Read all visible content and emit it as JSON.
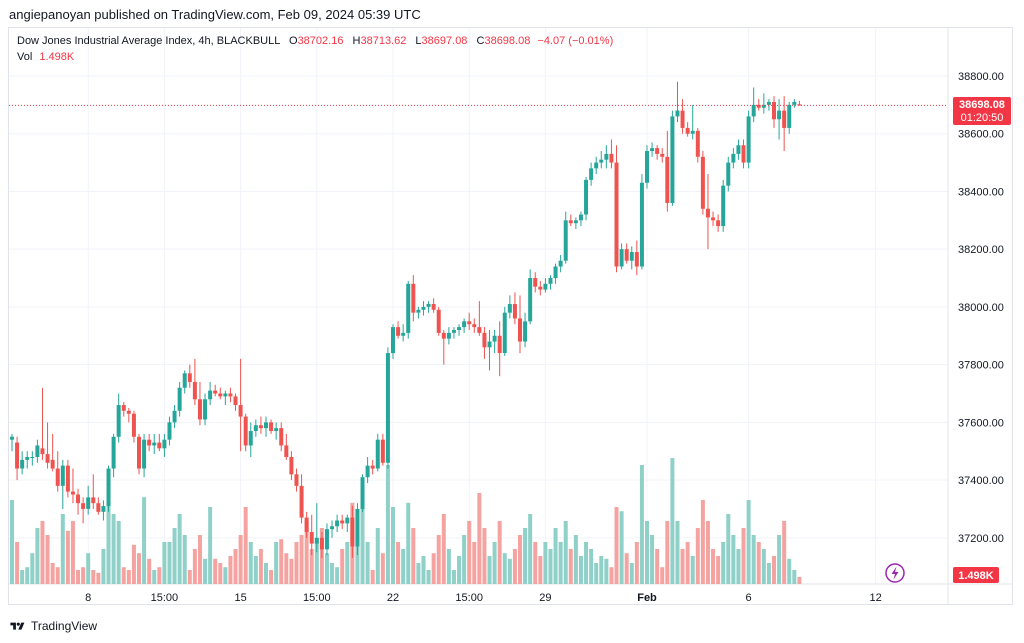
{
  "header": {
    "publisher_line": "angiepanoyan published on TradingView.com, Feb 09, 2024 05:39 UTC"
  },
  "legend": {
    "symbol": "Dow Jones Industrial Average Index, 4h, BLACKBULL",
    "o_label": "O",
    "o_value": "38702.16",
    "h_label": "H",
    "h_value": "38713.62",
    "l_label": "L",
    "l_value": "38697.08",
    "c_label": "C",
    "c_value": "38698.08",
    "change": "−4.07 (−0.01%)",
    "vol_label": "Vol",
    "vol_value": "1.498K"
  },
  "price_badge": {
    "price": "38698.08",
    "countdown": "01:20:50"
  },
  "volume_badge": "1.498K",
  "footer": {
    "brand": "TradingView"
  },
  "colors": {
    "up": "#26a69a",
    "down": "#ef5350",
    "vol_up": "#8fd0c8",
    "vol_down": "#f5a3a1",
    "badge": "#f23645"
  },
  "chart_data": {
    "type": "candlestick",
    "y_axis": {
      "ticks": [
        37200,
        37400,
        37600,
        37800,
        38000,
        38200,
        38400,
        38600,
        38800
      ],
      "range": [
        37040,
        38890
      ]
    },
    "x_tick_labels": [
      {
        "label": "8",
        "bar": 15
      },
      {
        "label": "15:00",
        "bar": 30
      },
      {
        "label": "15",
        "bar": 45
      },
      {
        "label": "15:00",
        "bar": 60
      },
      {
        "label": "22",
        "bar": 75
      },
      {
        "label": "15:00",
        "bar": 90
      },
      {
        "label": "29",
        "bar": 105
      },
      {
        "label": "Feb",
        "bar": 125
      },
      {
        "label": "6",
        "bar": 145
      },
      {
        "label": "12",
        "bar": 170
      }
    ],
    "last_price": 38698.08,
    "volume_max": 100,
    "candles": [
      {
        "o": 37540,
        "h": 37560,
        "l": 37500,
        "c": 37550,
        "v": 60
      },
      {
        "o": 37530,
        "h": 37550,
        "l": 37400,
        "c": 37440,
        "v": 30
      },
      {
        "o": 37440,
        "h": 37500,
        "l": 37420,
        "c": 37470,
        "v": 10
      },
      {
        "o": 37470,
        "h": 37500,
        "l": 37440,
        "c": 37480,
        "v": 12
      },
      {
        "o": 37480,
        "h": 37500,
        "l": 37450,
        "c": 37480,
        "v": 22
      },
      {
        "o": 37480,
        "h": 37540,
        "l": 37460,
        "c": 37520,
        "v": 40
      },
      {
        "o": 37510,
        "h": 37720,
        "l": 37470,
        "c": 37490,
        "v": 45
      },
      {
        "o": 37490,
        "h": 37600,
        "l": 37440,
        "c": 37460,
        "v": 35
      },
      {
        "o": 37470,
        "h": 37560,
        "l": 37430,
        "c": 37440,
        "v": 15
      },
      {
        "o": 37440,
        "h": 37500,
        "l": 37360,
        "c": 37380,
        "v": 12
      },
      {
        "o": 37380,
        "h": 37470,
        "l": 37300,
        "c": 37450,
        "v": 50
      },
      {
        "o": 37450,
        "h": 37470,
        "l": 37340,
        "c": 37360,
        "v": 38
      },
      {
        "o": 37360,
        "h": 37440,
        "l": 37320,
        "c": 37350,
        "v": 45
      },
      {
        "o": 37350,
        "h": 37370,
        "l": 37280,
        "c": 37320,
        "v": 10
      },
      {
        "o": 37320,
        "h": 37340,
        "l": 37250,
        "c": 37300,
        "v": 12
      },
      {
        "o": 37300,
        "h": 37380,
        "l": 37280,
        "c": 37340,
        "v": 22
      },
      {
        "o": 37340,
        "h": 37420,
        "l": 37300,
        "c": 37320,
        "v": 10
      },
      {
        "o": 37320,
        "h": 37340,
        "l": 37280,
        "c": 37290,
        "v": 8
      },
      {
        "o": 37290,
        "h": 37330,
        "l": 37260,
        "c": 37310,
        "v": 25
      },
      {
        "o": 37310,
        "h": 37450,
        "l": 37290,
        "c": 37440,
        "v": 58
      },
      {
        "o": 37440,
        "h": 37560,
        "l": 37410,
        "c": 37550,
        "v": 50
      },
      {
        "o": 37550,
        "h": 37700,
        "l": 37530,
        "c": 37660,
        "v": 45
      },
      {
        "o": 37660,
        "h": 37670,
        "l": 37620,
        "c": 37640,
        "v": 12
      },
      {
        "o": 37640,
        "h": 37650,
        "l": 37600,
        "c": 37630,
        "v": 10
      },
      {
        "o": 37630,
        "h": 37640,
        "l": 37530,
        "c": 37550,
        "v": 28
      },
      {
        "o": 37550,
        "h": 37560,
        "l": 37420,
        "c": 37440,
        "v": 22
      },
      {
        "o": 37440,
        "h": 37560,
        "l": 37410,
        "c": 37540,
        "v": 62
      },
      {
        "o": 37540,
        "h": 37560,
        "l": 37500,
        "c": 37520,
        "v": 18
      },
      {
        "o": 37520,
        "h": 37560,
        "l": 37490,
        "c": 37530,
        "v": 10
      },
      {
        "o": 37530,
        "h": 37560,
        "l": 37500,
        "c": 37510,
        "v": 12
      },
      {
        "o": 37510,
        "h": 37560,
        "l": 37480,
        "c": 37540,
        "v": 30
      },
      {
        "o": 37540,
        "h": 37620,
        "l": 37520,
        "c": 37600,
        "v": 30
      },
      {
        "o": 37600,
        "h": 37660,
        "l": 37580,
        "c": 37640,
        "v": 40
      },
      {
        "o": 37640,
        "h": 37740,
        "l": 37620,
        "c": 37720,
        "v": 50
      },
      {
        "o": 37720,
        "h": 37780,
        "l": 37700,
        "c": 37770,
        "v": 35
      },
      {
        "o": 37770,
        "h": 37800,
        "l": 37720,
        "c": 37740,
        "v": 10
      },
      {
        "o": 37740,
        "h": 37820,
        "l": 37660,
        "c": 37680,
        "v": 25
      },
      {
        "o": 37680,
        "h": 37740,
        "l": 37590,
        "c": 37610,
        "v": 35
      },
      {
        "o": 37610,
        "h": 37700,
        "l": 37590,
        "c": 37680,
        "v": 18
      },
      {
        "o": 37680,
        "h": 37740,
        "l": 37660,
        "c": 37710,
        "v": 55
      },
      {
        "o": 37710,
        "h": 37730,
        "l": 37690,
        "c": 37700,
        "v": 18
      },
      {
        "o": 37700,
        "h": 37720,
        "l": 37680,
        "c": 37690,
        "v": 15
      },
      {
        "o": 37690,
        "h": 37710,
        "l": 37660,
        "c": 37700,
        "v": 12
      },
      {
        "o": 37700,
        "h": 37720,
        "l": 37670,
        "c": 37690,
        "v": 20
      },
      {
        "o": 37690,
        "h": 37700,
        "l": 37640,
        "c": 37660,
        "v": 25
      },
      {
        "o": 37660,
        "h": 37820,
        "l": 37500,
        "c": 37620,
        "v": 35
      },
      {
        "o": 37620,
        "h": 37630,
        "l": 37500,
        "c": 37520,
        "v": 55
      },
      {
        "o": 37520,
        "h": 37600,
        "l": 37480,
        "c": 37570,
        "v": 30
      },
      {
        "o": 37570,
        "h": 37610,
        "l": 37550,
        "c": 37590,
        "v": 20
      },
      {
        "o": 37590,
        "h": 37620,
        "l": 37560,
        "c": 37580,
        "v": 25
      },
      {
        "o": 37580,
        "h": 37620,
        "l": 37550,
        "c": 37600,
        "v": 15
      },
      {
        "o": 37600,
        "h": 37610,
        "l": 37560,
        "c": 37570,
        "v": 10
      },
      {
        "o": 37570,
        "h": 37600,
        "l": 37540,
        "c": 37580,
        "v": 30
      },
      {
        "o": 37580,
        "h": 37600,
        "l": 37500,
        "c": 37520,
        "v": 32
      },
      {
        "o": 37520,
        "h": 37560,
        "l": 37470,
        "c": 37480,
        "v": 22
      },
      {
        "o": 37480,
        "h": 37500,
        "l": 37400,
        "c": 37420,
        "v": 18
      },
      {
        "o": 37420,
        "h": 37440,
        "l": 37360,
        "c": 37380,
        "v": 30
      },
      {
        "o": 37380,
        "h": 37420,
        "l": 37250,
        "c": 37270,
        "v": 35
      },
      {
        "o": 37270,
        "h": 37290,
        "l": 37200,
        "c": 37220,
        "v": 45
      },
      {
        "o": 37220,
        "h": 37280,
        "l": 37140,
        "c": 37180,
        "v": 25
      },
      {
        "o": 37180,
        "h": 37320,
        "l": 37150,
        "c": 37200,
        "v": 30
      },
      {
        "o": 37200,
        "h": 37220,
        "l": 37130,
        "c": 37160,
        "v": 40
      },
      {
        "o": 37160,
        "h": 37250,
        "l": 37140,
        "c": 37230,
        "v": 22
      },
      {
        "o": 37230,
        "h": 37260,
        "l": 37200,
        "c": 37240,
        "v": 15
      },
      {
        "o": 37240,
        "h": 37280,
        "l": 37220,
        "c": 37260,
        "v": 12
      },
      {
        "o": 37260,
        "h": 37280,
        "l": 37230,
        "c": 37250,
        "v": 25
      },
      {
        "o": 37250,
        "h": 37280,
        "l": 37220,
        "c": 37270,
        "v": 30
      },
      {
        "o": 37270,
        "h": 37310,
        "l": 37130,
        "c": 37170,
        "v": 58
      },
      {
        "o": 37170,
        "h": 37320,
        "l": 37140,
        "c": 37300,
        "v": 48
      },
      {
        "o": 37300,
        "h": 37420,
        "l": 37290,
        "c": 37410,
        "v": 55
      },
      {
        "o": 37410,
        "h": 37480,
        "l": 37390,
        "c": 37450,
        "v": 30
      },
      {
        "o": 37450,
        "h": 37470,
        "l": 37420,
        "c": 37440,
        "v": 10
      },
      {
        "o": 37440,
        "h": 37560,
        "l": 37430,
        "c": 37540,
        "v": 40
      },
      {
        "o": 37540,
        "h": 37560,
        "l": 37450,
        "c": 37460,
        "v": 22
      },
      {
        "o": 37460,
        "h": 37860,
        "l": 37440,
        "c": 37840,
        "v": 85
      },
      {
        "o": 37840,
        "h": 37940,
        "l": 37820,
        "c": 37930,
        "v": 55
      },
      {
        "o": 37930,
        "h": 37950,
        "l": 37890,
        "c": 37900,
        "v": 30
      },
      {
        "o": 37900,
        "h": 37940,
        "l": 37880,
        "c": 37910,
        "v": 25
      },
      {
        "o": 37910,
        "h": 38090,
        "l": 37890,
        "c": 38080,
        "v": 58
      },
      {
        "o": 38080,
        "h": 38110,
        "l": 37950,
        "c": 37980,
        "v": 40
      },
      {
        "o": 37980,
        "h": 38000,
        "l": 37960,
        "c": 37990,
        "v": 15
      },
      {
        "o": 37990,
        "h": 38020,
        "l": 37970,
        "c": 38000,
        "v": 20
      },
      {
        "o": 38000,
        "h": 38020,
        "l": 37980,
        "c": 38010,
        "v": 10
      },
      {
        "o": 38010,
        "h": 38030,
        "l": 37980,
        "c": 37990,
        "v": 22
      },
      {
        "o": 37990,
        "h": 38000,
        "l": 37900,
        "c": 37910,
        "v": 35
      },
      {
        "o": 37910,
        "h": 37920,
        "l": 37800,
        "c": 37890,
        "v": 50
      },
      {
        "o": 37890,
        "h": 37930,
        "l": 37870,
        "c": 37910,
        "v": 25
      },
      {
        "o": 37910,
        "h": 37930,
        "l": 37890,
        "c": 37920,
        "v": 10
      },
      {
        "o": 37920,
        "h": 37940,
        "l": 37900,
        "c": 37930,
        "v": 20
      },
      {
        "o": 37930,
        "h": 37960,
        "l": 37910,
        "c": 37950,
        "v": 35
      },
      {
        "o": 37950,
        "h": 37980,
        "l": 37920,
        "c": 37940,
        "v": 45
      },
      {
        "o": 37940,
        "h": 37960,
        "l": 37910,
        "c": 37930,
        "v": 30
      },
      {
        "o": 37930,
        "h": 38020,
        "l": 37900,
        "c": 37910,
        "v": 65
      },
      {
        "o": 37910,
        "h": 37930,
        "l": 37820,
        "c": 37860,
        "v": 40
      },
      {
        "o": 37860,
        "h": 37920,
        "l": 37780,
        "c": 37880,
        "v": 20
      },
      {
        "o": 37880,
        "h": 37920,
        "l": 37840,
        "c": 37900,
        "v": 30
      },
      {
        "o": 37900,
        "h": 37950,
        "l": 37760,
        "c": 37840,
        "v": 45
      },
      {
        "o": 37840,
        "h": 38000,
        "l": 37830,
        "c": 37980,
        "v": 22
      },
      {
        "o": 37980,
        "h": 38040,
        "l": 37960,
        "c": 38010,
        "v": 18
      },
      {
        "o": 38010,
        "h": 38050,
        "l": 37940,
        "c": 37960,
        "v": 25
      },
      {
        "o": 37960,
        "h": 38040,
        "l": 37840,
        "c": 37880,
        "v": 35
      },
      {
        "o": 37880,
        "h": 37980,
        "l": 37860,
        "c": 37950,
        "v": 40
      },
      {
        "o": 37950,
        "h": 38130,
        "l": 37940,
        "c": 38100,
        "v": 50
      },
      {
        "o": 38100,
        "h": 38120,
        "l": 38050,
        "c": 38070,
        "v": 30
      },
      {
        "o": 38070,
        "h": 38090,
        "l": 38040,
        "c": 38060,
        "v": 20
      },
      {
        "o": 38060,
        "h": 38100,
        "l": 38050,
        "c": 38080,
        "v": 30
      },
      {
        "o": 38080,
        "h": 38110,
        "l": 38060,
        "c": 38100,
        "v": 25
      },
      {
        "o": 38100,
        "h": 38150,
        "l": 38080,
        "c": 38140,
        "v": 40
      },
      {
        "o": 38140,
        "h": 38180,
        "l": 38120,
        "c": 38160,
        "v": 30
      },
      {
        "o": 38160,
        "h": 38330,
        "l": 38150,
        "c": 38300,
        "v": 45
      },
      {
        "o": 38300,
        "h": 38320,
        "l": 38280,
        "c": 38290,
        "v": 25
      },
      {
        "o": 38290,
        "h": 38310,
        "l": 38270,
        "c": 38300,
        "v": 35
      },
      {
        "o": 38300,
        "h": 38330,
        "l": 38280,
        "c": 38320,
        "v": 20
      },
      {
        "o": 38320,
        "h": 38450,
        "l": 38300,
        "c": 38440,
        "v": 30
      },
      {
        "o": 38440,
        "h": 38500,
        "l": 38420,
        "c": 38480,
        "v": 25
      },
      {
        "o": 38480,
        "h": 38520,
        "l": 38460,
        "c": 38500,
        "v": 15
      },
      {
        "o": 38500,
        "h": 38540,
        "l": 38480,
        "c": 38510,
        "v": 20
      },
      {
        "o": 38510,
        "h": 38560,
        "l": 38480,
        "c": 38530,
        "v": 18
      },
      {
        "o": 38530,
        "h": 38580,
        "l": 38480,
        "c": 38500,
        "v": 12
      },
      {
        "o": 38500,
        "h": 38560,
        "l": 38120,
        "c": 38140,
        "v": 55
      },
      {
        "o": 38140,
        "h": 38220,
        "l": 38130,
        "c": 38200,
        "v": 52
      },
      {
        "o": 38200,
        "h": 38220,
        "l": 38150,
        "c": 38160,
        "v": 22
      },
      {
        "o": 38160,
        "h": 38210,
        "l": 38130,
        "c": 38190,
        "v": 15
      },
      {
        "o": 38190,
        "h": 38230,
        "l": 38110,
        "c": 38140,
        "v": 30
      },
      {
        "o": 38140,
        "h": 38460,
        "l": 38130,
        "c": 38430,
        "v": 85
      },
      {
        "o": 38430,
        "h": 38560,
        "l": 38410,
        "c": 38540,
        "v": 45
      },
      {
        "o": 38540,
        "h": 38570,
        "l": 38520,
        "c": 38550,
        "v": 35
      },
      {
        "o": 38550,
        "h": 38560,
        "l": 38510,
        "c": 38530,
        "v": 25
      },
      {
        "o": 38530,
        "h": 38550,
        "l": 38500,
        "c": 38520,
        "v": 12
      },
      {
        "o": 38520,
        "h": 38610,
        "l": 38330,
        "c": 38360,
        "v": 45
      },
      {
        "o": 38360,
        "h": 38680,
        "l": 38350,
        "c": 38660,
        "v": 90
      },
      {
        "o": 38660,
        "h": 38780,
        "l": 38640,
        "c": 38680,
        "v": 45
      },
      {
        "o": 38680,
        "h": 38720,
        "l": 38600,
        "c": 38620,
        "v": 25
      },
      {
        "o": 38620,
        "h": 38640,
        "l": 38590,
        "c": 38600,
        "v": 30
      },
      {
        "o": 38600,
        "h": 38700,
        "l": 38580,
        "c": 38610,
        "v": 20
      },
      {
        "o": 38610,
        "h": 38620,
        "l": 38500,
        "c": 38520,
        "v": 40
      },
      {
        "o": 38520,
        "h": 38540,
        "l": 38320,
        "c": 38340,
        "v": 60
      },
      {
        "o": 38340,
        "h": 38460,
        "l": 38200,
        "c": 38310,
        "v": 45
      },
      {
        "o": 38310,
        "h": 38330,
        "l": 38280,
        "c": 38300,
        "v": 25
      },
      {
        "o": 38300,
        "h": 38320,
        "l": 38260,
        "c": 38280,
        "v": 20
      },
      {
        "o": 38280,
        "h": 38440,
        "l": 38260,
        "c": 38420,
        "v": 30
      },
      {
        "o": 38420,
        "h": 38520,
        "l": 38400,
        "c": 38500,
        "v": 50
      },
      {
        "o": 38500,
        "h": 38550,
        "l": 38480,
        "c": 38530,
        "v": 35
      },
      {
        "o": 38530,
        "h": 38580,
        "l": 38510,
        "c": 38560,
        "v": 25
      },
      {
        "o": 38560,
        "h": 38580,
        "l": 38480,
        "c": 38500,
        "v": 40
      },
      {
        "o": 38500,
        "h": 38680,
        "l": 38480,
        "c": 38660,
        "v": 60
      },
      {
        "o": 38660,
        "h": 38760,
        "l": 38640,
        "c": 38700,
        "v": 35
      },
      {
        "o": 38700,
        "h": 38720,
        "l": 38680,
        "c": 38690,
        "v": 30
      },
      {
        "o": 38690,
        "h": 38740,
        "l": 38670,
        "c": 38700,
        "v": 25
      },
      {
        "o": 38700,
        "h": 38720,
        "l": 38680,
        "c": 38710,
        "v": 15
      },
      {
        "o": 38710,
        "h": 38730,
        "l": 38620,
        "c": 38650,
        "v": 20
      },
      {
        "o": 38650,
        "h": 38720,
        "l": 38580,
        "c": 38680,
        "v": 35
      },
      {
        "o": 38680,
        "h": 38730,
        "l": 38540,
        "c": 38620,
        "v": 45
      },
      {
        "o": 38620,
        "h": 38710,
        "l": 38600,
        "c": 38700,
        "v": 18
      },
      {
        "o": 38700,
        "h": 38720,
        "l": 38690,
        "c": 38710,
        "v": 10
      },
      {
        "o": 38702,
        "h": 38714,
        "l": 38697,
        "c": 38698,
        "v": 5
      }
    ]
  }
}
